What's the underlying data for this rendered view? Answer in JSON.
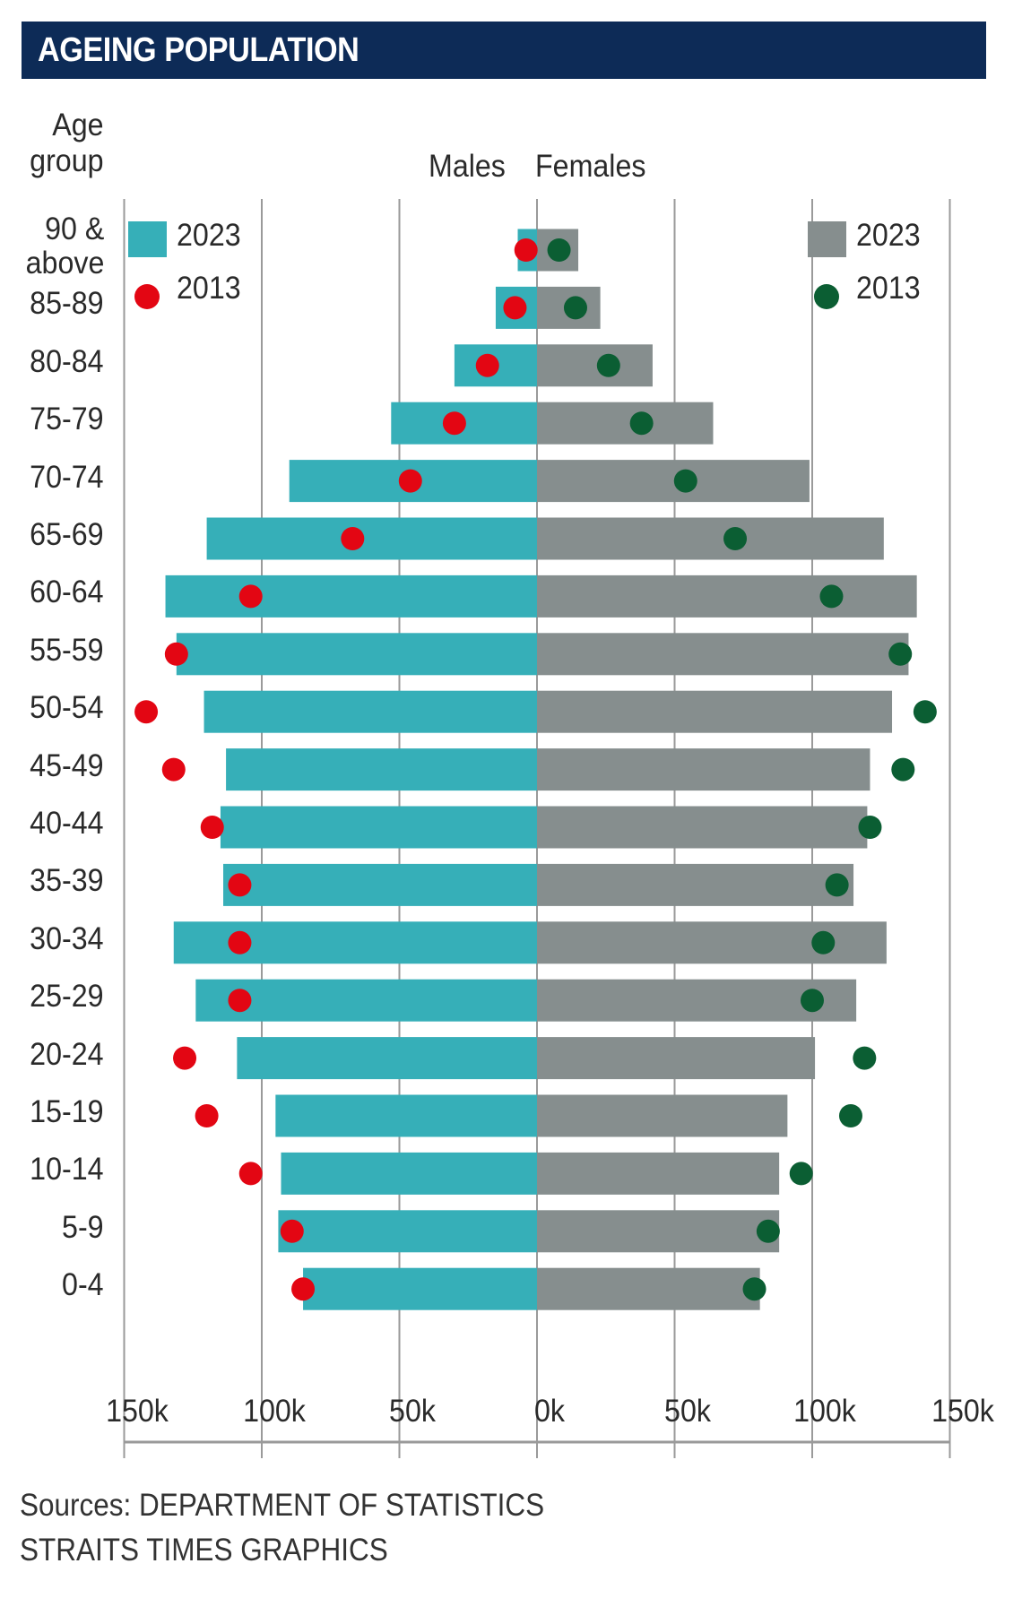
{
  "title": "AGEING POPULATION",
  "axis_headers": {
    "age_group_line1": "Age",
    "age_group_line2": "group",
    "males": "Males",
    "females": "Females"
  },
  "legend": {
    "males": [
      {
        "label": "2023",
        "shape": "square",
        "color": "#36afb8"
      },
      {
        "label": "2013",
        "shape": "circle",
        "color": "#e30613"
      }
    ],
    "females": [
      {
        "label": "2023",
        "shape": "square",
        "color": "#868e8e"
      },
      {
        "label": "2013",
        "shape": "circle",
        "color": "#0b5e33"
      }
    ]
  },
  "sources": {
    "line1": "Sources: DEPARTMENT OF STATISTICS",
    "line2": "STRAITS TIMES GRAPHICS"
  },
  "colors": {
    "title_bg": "#0d2b57",
    "male_2023": "#36afb8",
    "male_2013": "#e30613",
    "female_2023": "#868e8e",
    "female_2013": "#0b5e33",
    "grid": "#9a9a9a"
  },
  "chart_data": {
    "type": "bar",
    "subtype": "population-pyramid",
    "title": "AGEING POPULATION",
    "xlabel": "",
    "ylabel": "Age group",
    "xlim": [
      -150000,
      150000
    ],
    "x_ticks": [
      -150000,
      -100000,
      -50000,
      0,
      50000,
      100000,
      150000
    ],
    "x_tick_labels": [
      "150k",
      "100k",
      "50k",
      "0k",
      "50k",
      "100k",
      "150k"
    ],
    "grid": true,
    "legend_placement": "top-left and top-right",
    "categories": [
      "90 & above",
      "85-89",
      "80-84",
      "75-79",
      "70-74",
      "65-69",
      "60-64",
      "55-59",
      "50-54",
      "45-49",
      "40-44",
      "35-39",
      "30-34",
      "25-29",
      "20-24",
      "15-19",
      "10-14",
      "5-9",
      "0-4"
    ],
    "category_lines": [
      [
        "90 &",
        "above"
      ],
      [
        "85-89"
      ],
      [
        "80-84"
      ],
      [
        "75-79"
      ],
      [
        "70-74"
      ],
      [
        "65-69"
      ],
      [
        "60-64"
      ],
      [
        "55-59"
      ],
      [
        "50-54"
      ],
      [
        "45-49"
      ],
      [
        "40-44"
      ],
      [
        "35-39"
      ],
      [
        "30-34"
      ],
      [
        "25-29"
      ],
      [
        "20-24"
      ],
      [
        "15-19"
      ],
      [
        "10-14"
      ],
      [
        "5-9"
      ],
      [
        "0-4"
      ]
    ],
    "series": [
      {
        "name": "Males 2023",
        "side": "left",
        "mark": "bar",
        "values": [
          7000,
          15000,
          30000,
          53000,
          90000,
          120000,
          135000,
          131000,
          121000,
          113000,
          115000,
          114000,
          132000,
          124000,
          109000,
          95000,
          93000,
          94000,
          85000
        ]
      },
      {
        "name": "Males 2013",
        "side": "left",
        "mark": "dot",
        "values": [
          4000,
          8000,
          18000,
          30000,
          46000,
          67000,
          104000,
          131000,
          142000,
          132000,
          118000,
          108000,
          108000,
          108000,
          128000,
          120000,
          104000,
          89000,
          85000
        ]
      },
      {
        "name": "Females 2023",
        "side": "right",
        "mark": "bar",
        "values": [
          15000,
          23000,
          42000,
          64000,
          99000,
          126000,
          138000,
          135000,
          129000,
          121000,
          120000,
          115000,
          127000,
          116000,
          101000,
          91000,
          88000,
          88000,
          81000
        ]
      },
      {
        "name": "Females 2013",
        "side": "right",
        "mark": "dot",
        "values": [
          8000,
          14000,
          26000,
          38000,
          54000,
          72000,
          107000,
          132000,
          141000,
          133000,
          121000,
          109000,
          104000,
          100000,
          119000,
          114000,
          96000,
          84000,
          79000
        ]
      }
    ]
  }
}
